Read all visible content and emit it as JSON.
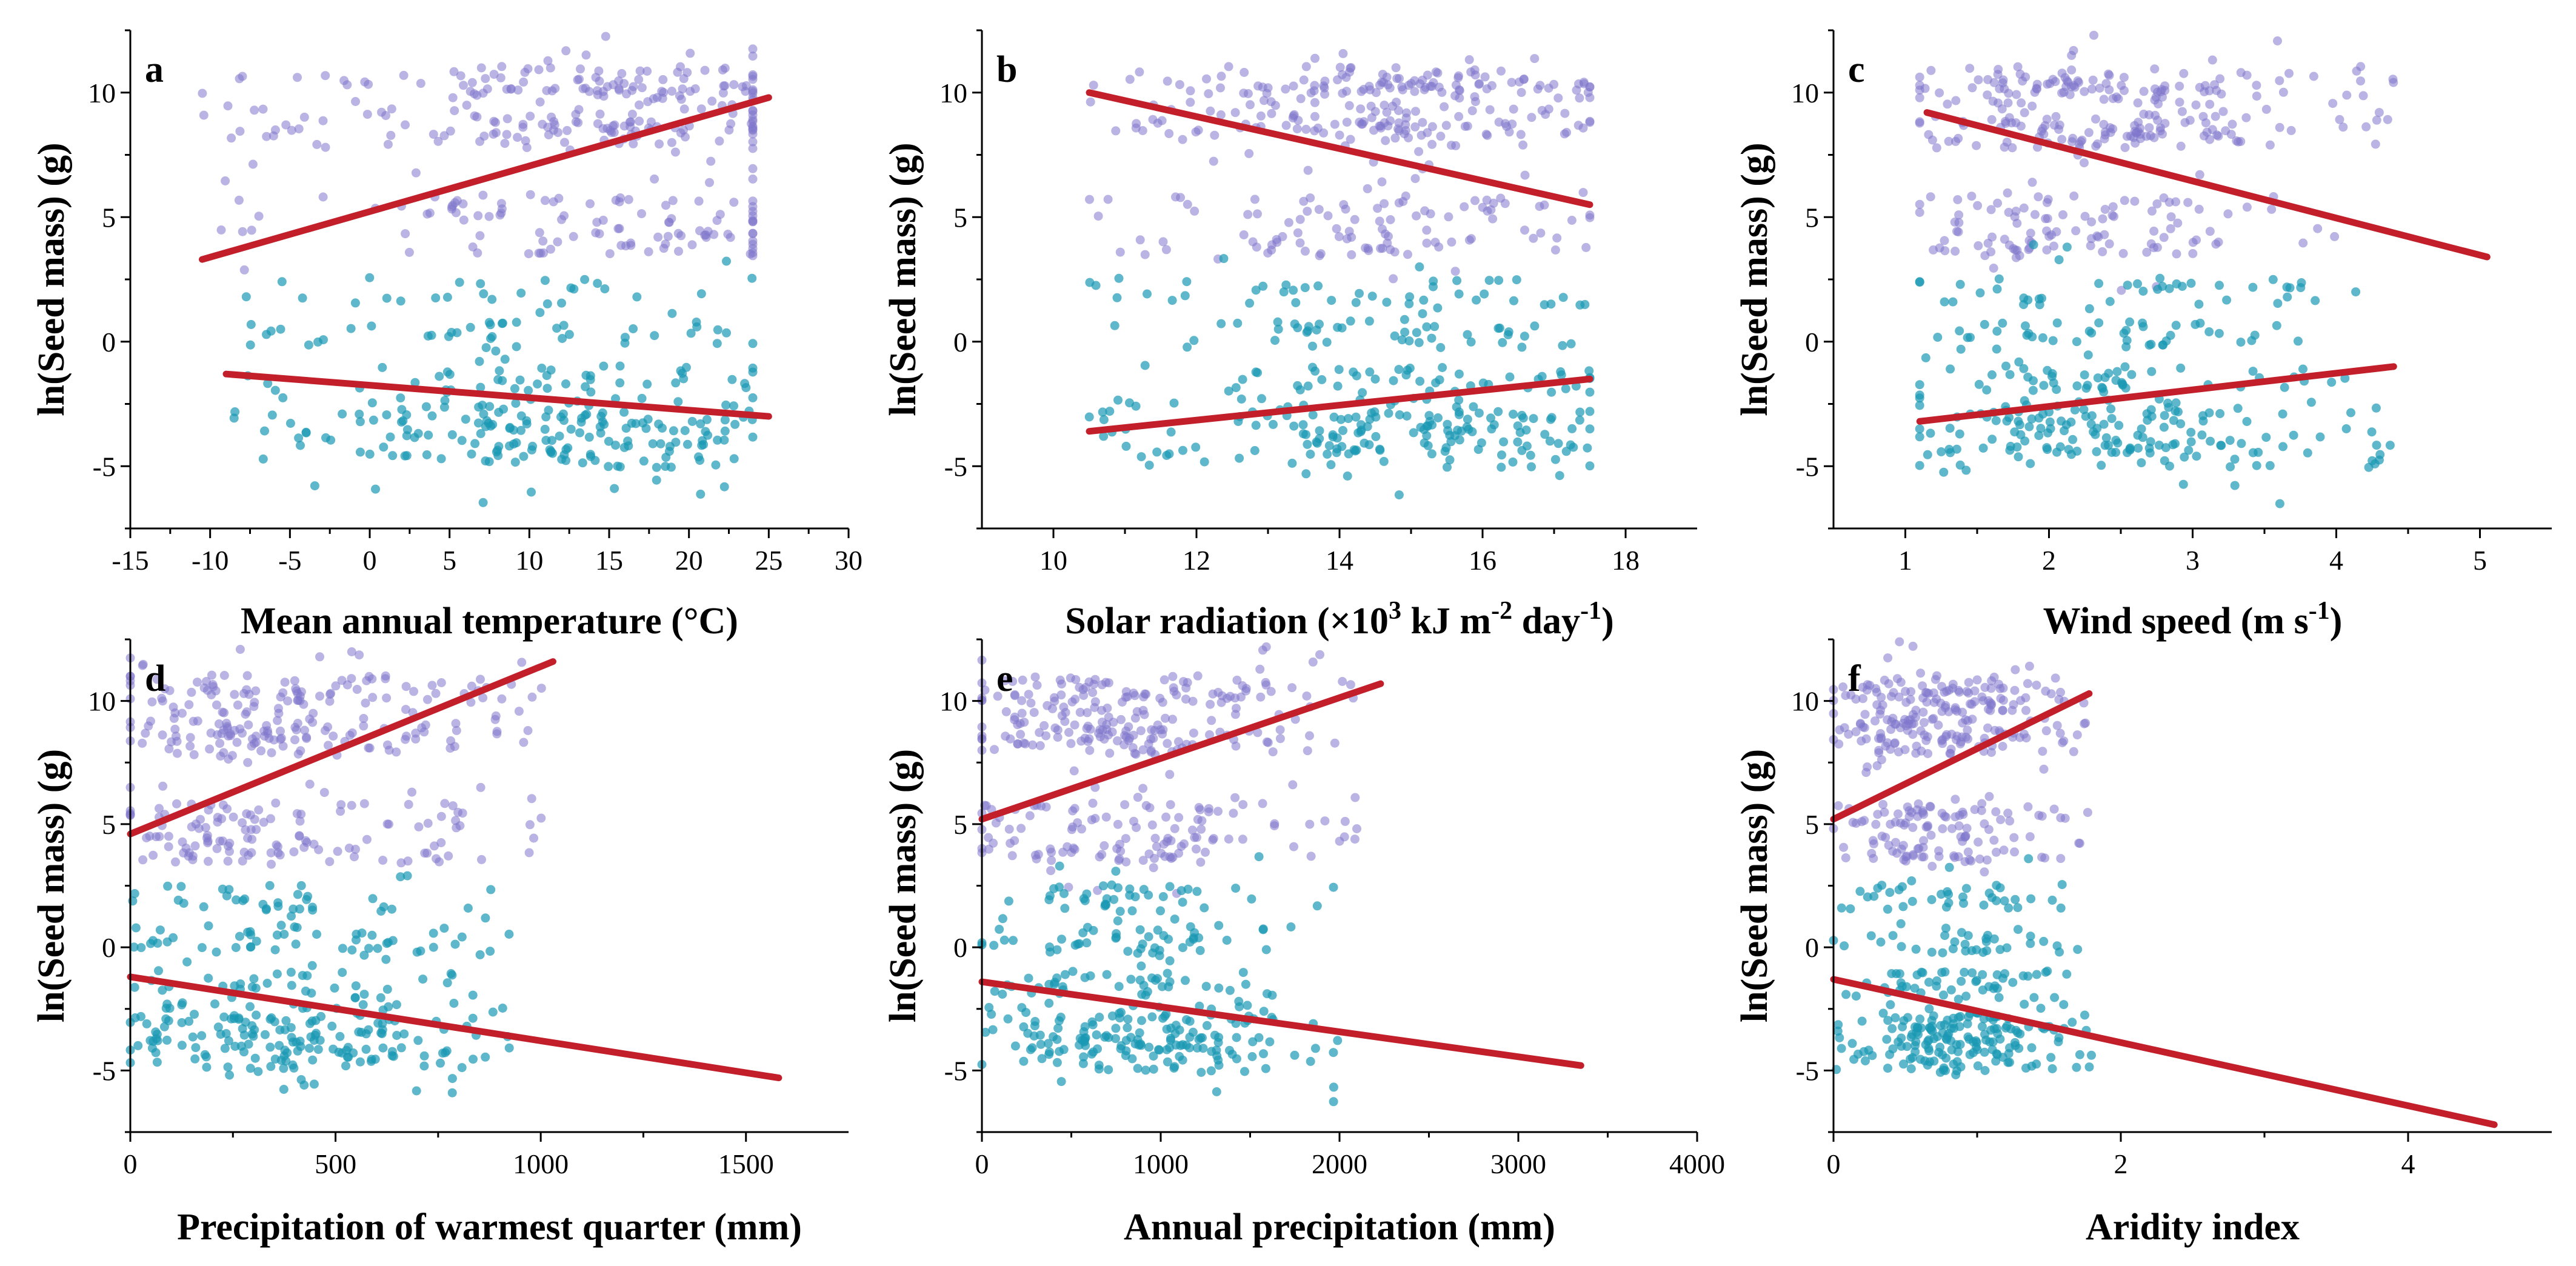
{
  "figure": {
    "colors": {
      "group_high": "#8077cc",
      "group_low": "#1a98b3",
      "fit_line": "#c21f2b",
      "axis": "#000000"
    },
    "seed_mass_groups": [
      "large-seeded cluster (purple)",
      "small-seeded cluster (teal)"
    ]
  },
  "chart_data": [
    {
      "panel": "a",
      "type": "scatter",
      "xlabel": "Mean annual temperature (°C)",
      "ylabel": "ln(Seed mass) (g)",
      "xlim": [
        -15,
        30
      ],
      "ylim": [
        -7.5,
        12.5
      ],
      "xticks": [
        -15,
        -10,
        -5,
        0,
        5,
        10,
        15,
        20,
        25,
        30
      ],
      "xtick_labels": [
        "-15",
        "-10",
        "-5",
        "0",
        "5",
        "10",
        "15",
        "20",
        "25",
        "30"
      ],
      "yticks": [
        -5,
        0,
        5,
        10
      ],
      "ytick_labels": [
        "-5",
        "0",
        "5",
        "10"
      ],
      "clusters": [
        {
          "name": "high",
          "color": "#8077cc",
          "x_range": [
            -10.5,
            24
          ],
          "x_peak": 16,
          "levels": [
            10.5,
            10.0,
            8.8,
            8.3,
            5.3,
            4.0
          ],
          "n": 340,
          "seed": 11
        },
        {
          "name": "low",
          "color": "#1a98b3",
          "x_range": [
            -9,
            24
          ],
          "x_peak": 12,
          "levels": [
            -4.5,
            -4.0,
            -3.3,
            -2.8,
            -1.5,
            0.3,
            2.0
          ],
          "n": 300,
          "seed": 12
        }
      ],
      "fits": [
        {
          "name": "high",
          "x": [
            -10.5,
            25
          ],
          "y": [
            3.3,
            9.8
          ]
        },
        {
          "name": "low",
          "x": [
            -9,
            25
          ],
          "y": [
            -1.3,
            -3.0
          ]
        }
      ]
    },
    {
      "panel": "b",
      "type": "scatter",
      "xlabel": "Solar radiation (×10",
      "xlabel_sup1": "3",
      "xlabel_mid": " kJ m",
      "xlabel_sup2": "-2",
      "xlabel_mid2": " day",
      "xlabel_sup3": "-1",
      "xlabel_end": ")",
      "ylabel": "ln(Seed mass) (g)",
      "xlim": [
        9,
        19
      ],
      "ylim": [
        -7.5,
        12.5
      ],
      "xticks": [
        10,
        12,
        14,
        16,
        18
      ],
      "xtick_labels": [
        "10",
        "12",
        "14",
        "16",
        "18"
      ],
      "yticks": [
        -5,
        0,
        5,
        10
      ],
      "ytick_labels": [
        "-5",
        "0",
        "5",
        "10"
      ],
      "clusters": [
        {
          "name": "high",
          "color": "#8077cc",
          "x_range": [
            10.5,
            17.5
          ],
          "x_peak": 14.8,
          "levels": [
            10.5,
            10.0,
            8.8,
            8.3,
            5.3,
            4.0
          ],
          "n": 340,
          "seed": 21
        },
        {
          "name": "low",
          "color": "#1a98b3",
          "x_range": [
            10.4,
            17.5
          ],
          "x_peak": 15,
          "levels": [
            -4.5,
            -4.0,
            -3.3,
            -2.8,
            -1.5,
            0.3,
            2.0
          ],
          "n": 300,
          "seed": 22
        }
      ],
      "fits": [
        {
          "name": "high",
          "x": [
            10.5,
            17.5
          ],
          "y": [
            10.0,
            5.5
          ]
        },
        {
          "name": "low",
          "x": [
            10.5,
            17.5
          ],
          "y": [
            -3.6,
            -1.5
          ]
        }
      ]
    },
    {
      "panel": "c",
      "type": "scatter",
      "xlabel": "Wind speed (m s",
      "xlabel_sup1": "-1",
      "xlabel_end": ")",
      "ylabel": "ln(Seed mass) (g)",
      "xlim": [
        0.5,
        5.5
      ],
      "ylim": [
        -7.5,
        12.5
      ],
      "xticks": [
        1,
        2,
        3,
        4,
        5
      ],
      "xtick_labels": [
        "1",
        "2",
        "3",
        "4",
        "5"
      ],
      "yticks": [
        -5,
        0,
        5,
        10
      ],
      "ytick_labels": [
        "-5",
        "0",
        "5",
        "10"
      ],
      "clusters": [
        {
          "name": "high",
          "color": "#8077cc",
          "x_range": [
            1.1,
            4.4
          ],
          "x_peak": 2.3,
          "levels": [
            10.5,
            10.0,
            8.8,
            8.3,
            5.3,
            4.0
          ],
          "n": 340,
          "seed": 31
        },
        {
          "name": "low",
          "color": "#1a98b3",
          "x_range": [
            1.1,
            4.4
          ],
          "x_peak": 2.4,
          "levels": [
            -4.5,
            -4.0,
            -3.3,
            -2.8,
            -1.5,
            0.3,
            2.0
          ],
          "n": 300,
          "seed": 32
        }
      ],
      "fits": [
        {
          "name": "high",
          "x": [
            1.15,
            5.05
          ],
          "y": [
            9.2,
            3.4
          ]
        },
        {
          "name": "low",
          "x": [
            1.1,
            4.4
          ],
          "y": [
            -3.2,
            -1.0
          ]
        }
      ]
    },
    {
      "panel": "d",
      "type": "scatter",
      "xlabel": "Precipitation of warmest quarter (mm)",
      "ylabel": "ln(Seed mass) (g)",
      "xlim": [
        0,
        1750
      ],
      "ylim": [
        -7.5,
        12.5
      ],
      "xticks": [
        0,
        500,
        1000,
        1500
      ],
      "xtick_labels": [
        "0",
        "500",
        "1000",
        "1500"
      ],
      "yticks": [
        -5,
        0,
        5,
        10
      ],
      "ytick_labels": [
        "-5",
        "0",
        "5",
        "10"
      ],
      "clusters": [
        {
          "name": "high",
          "color": "#8077cc",
          "x_range": [
            0,
            1020
          ],
          "x_peak": 320,
          "levels": [
            10.5,
            10.0,
            8.8,
            8.3,
            5.3,
            4.0
          ],
          "n": 340,
          "seed": 41
        },
        {
          "name": "low",
          "color": "#1a98b3",
          "x_range": [
            0,
            950
          ],
          "x_peak": 380,
          "levels": [
            -4.5,
            -4.0,
            -3.3,
            -2.8,
            -1.5,
            0.3,
            2.0
          ],
          "n": 300,
          "seed": 42
        }
      ],
      "fits": [
        {
          "name": "high",
          "x": [
            0,
            1030
          ],
          "y": [
            4.6,
            11.6
          ]
        },
        {
          "name": "low",
          "x": [
            0,
            1580
          ],
          "y": [
            -1.2,
            -5.3
          ]
        }
      ]
    },
    {
      "panel": "e",
      "type": "scatter",
      "xlabel": "Annual precipitation (mm)",
      "ylabel": "ln(Seed mass) (g)",
      "xlim": [
        0,
        4000
      ],
      "ylim": [
        -7.5,
        12.5
      ],
      "xticks": [
        0,
        1000,
        2000,
        3000,
        4000
      ],
      "xtick_labels": [
        "0",
        "1000",
        "2000",
        "3000",
        "4000"
      ],
      "yticks": [
        -5,
        0,
        5,
        10
      ],
      "ytick_labels": [
        "-5",
        "0",
        "5",
        "10"
      ],
      "clusters": [
        {
          "name": "high",
          "color": "#8077cc",
          "x_range": [
            0,
            2100
          ],
          "x_peak": 700,
          "levels": [
            10.5,
            10.0,
            8.8,
            8.3,
            5.3,
            4.0
          ],
          "n": 340,
          "seed": 51
        },
        {
          "name": "low",
          "color": "#1a98b3",
          "x_range": [
            0,
            2000
          ],
          "x_peak": 900,
          "levels": [
            -4.5,
            -4.0,
            -3.3,
            -2.8,
            -1.5,
            0.3,
            2.0
          ],
          "n": 300,
          "seed": 52
        }
      ],
      "fits": [
        {
          "name": "high",
          "x": [
            0,
            2230
          ],
          "y": [
            5.2,
            10.7
          ]
        },
        {
          "name": "low",
          "x": [
            0,
            3350
          ],
          "y": [
            -1.4,
            -4.8
          ]
        }
      ]
    },
    {
      "panel": "f",
      "type": "scatter",
      "xlabel": "Aridity index",
      "ylabel": "ln(Seed mass) (g)",
      "xlim": [
        0,
        5
      ],
      "ylim": [
        -7.5,
        12.5
      ],
      "xticks": [
        0,
        2,
        4
      ],
      "xtick_labels": [
        "0",
        "2",
        "4"
      ],
      "yticks": [
        -5,
        0,
        5,
        10
      ],
      "ytick_labels": [
        "-5",
        "0",
        "5",
        "10"
      ],
      "clusters": [
        {
          "name": "high",
          "color": "#8077cc",
          "x_range": [
            0,
            1.8
          ],
          "x_peak": 0.7,
          "levels": [
            10.5,
            10.0,
            8.8,
            8.3,
            5.3,
            4.0
          ],
          "n": 340,
          "seed": 61
        },
        {
          "name": "low",
          "color": "#1a98b3",
          "x_range": [
            0,
            1.8
          ],
          "x_peak": 0.8,
          "levels": [
            -4.5,
            -4.0,
            -3.3,
            -2.8,
            -1.5,
            0.3,
            2.0
          ],
          "n": 300,
          "seed": 62
        }
      ],
      "fits": [
        {
          "name": "high",
          "x": [
            0,
            1.78
          ],
          "y": [
            5.2,
            10.3
          ]
        },
        {
          "name": "low",
          "x": [
            0,
            4.6
          ],
          "y": [
            -1.3,
            -7.2
          ]
        }
      ]
    }
  ]
}
